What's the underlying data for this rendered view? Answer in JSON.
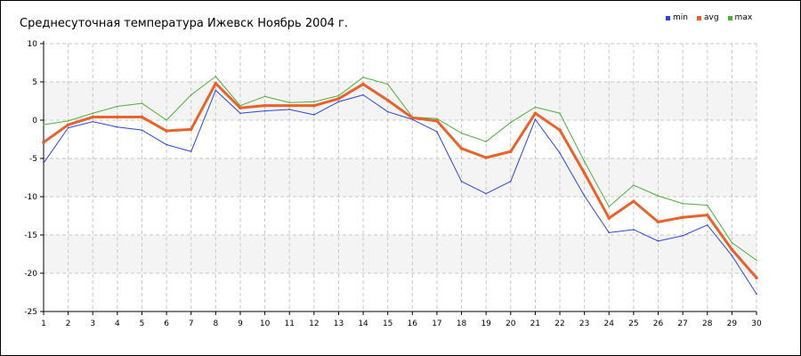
{
  "chart_data": {
    "type": "line",
    "title": "Среднесуточная температура Ижевск  Ноябрь 2004 г.",
    "xlabel": "",
    "ylabel": "",
    "x": [
      1,
      2,
      3,
      4,
      5,
      6,
      7,
      8,
      9,
      10,
      11,
      12,
      13,
      14,
      15,
      16,
      17,
      18,
      19,
      20,
      21,
      22,
      23,
      24,
      25,
      26,
      27,
      28,
      29,
      30
    ],
    "xlim": [
      1,
      30
    ],
    "ylim": [
      -25,
      10
    ],
    "yticks": [
      10,
      5,
      0,
      -5,
      -10,
      -15,
      -20,
      -25
    ],
    "grid": true,
    "legend": "top-right",
    "series": [
      {
        "name": "min",
        "color": "#2a45e0",
        "values": [
          -5.6,
          -1.0,
          -0.2,
          -0.9,
          -1.3,
          -3.2,
          -4.1,
          3.9,
          0.9,
          1.2,
          1.4,
          0.7,
          2.4,
          3.3,
          1.1,
          0.1,
          -1.5,
          -8.0,
          -9.6,
          -8.0,
          0.1,
          -4.3,
          -9.9,
          -14.7,
          -14.3,
          -15.8,
          -15.1,
          -13.7,
          -17.7,
          -22.7
        ]
      },
      {
        "name": "avg",
        "color": "#e8622a",
        "values": [
          -2.9,
          -0.6,
          0.4,
          0.4,
          0.4,
          -1.4,
          -1.2,
          4.8,
          1.6,
          1.9,
          1.9,
          1.9,
          2.8,
          4.7,
          2.6,
          0.3,
          -0.1,
          -3.7,
          -4.9,
          -4.1,
          0.9,
          -1.3,
          -6.9,
          -12.8,
          -10.6,
          -13.3,
          -12.7,
          -12.4,
          -16.9,
          -20.6
        ]
      },
      {
        "name": "max",
        "color": "#4caf3a",
        "values": [
          -0.6,
          -0.1,
          0.9,
          1.8,
          2.2,
          0.0,
          3.3,
          5.7,
          1.9,
          3.1,
          2.3,
          2.4,
          3.2,
          5.6,
          4.7,
          0.4,
          0.2,
          -1.7,
          -2.8,
          -0.3,
          1.7,
          0.9,
          -5.4,
          -11.3,
          -8.5,
          -9.9,
          -10.9,
          -11.1,
          -16.0,
          -18.3
        ]
      }
    ]
  }
}
